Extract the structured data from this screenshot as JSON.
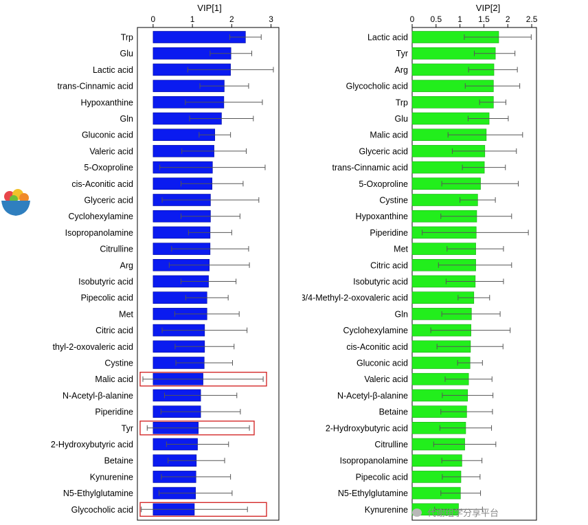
{
  "colors": {
    "left_bar": "#0a1bf0",
    "right_bar": "#22ee1c",
    "highlight": "#d42a2a"
  },
  "logo": {
    "icon": "fruit-bowl-icon"
  },
  "watermark": {
    "text": "代谢组学分享平台",
    "icon": "chat-bubble-icon"
  },
  "chart_data": [
    {
      "type": "bar",
      "orientation": "horizontal",
      "xlabel": "VIP[1]",
      "xlim": [
        -0.4,
        3.2
      ],
      "xticks": [
        0,
        1,
        2,
        3
      ],
      "categories": [
        "Trp",
        "Glu",
        "Lactic acid",
        "trans-Cinnamic acid",
        "Hypoxanthine",
        "Gln",
        "Gluconic acid",
        "Valeric acid",
        "5-Oxoproline",
        "cis-Aconitic acid",
        "Glyceric acid",
        "Cyclohexylamine",
        "Isopropanolamine",
        "Citrulline",
        "Arg",
        "Isobutyric acid",
        "Pipecolic acid",
        "Met",
        "Citric acid",
        "thyl-2-oxovaleric acid",
        "Cystine",
        "Malic acid",
        "N-Acetyl-β-alanine",
        "Piperidine",
        "Tyr",
        "2-Hydroxybutyric acid",
        "Betaine",
        "Kynurenine",
        "N5-Ethylglutamine",
        "Glycocholic acid"
      ],
      "values": [
        2.35,
        1.98,
        1.97,
        1.81,
        1.8,
        1.74,
        1.57,
        1.55,
        1.51,
        1.5,
        1.46,
        1.46,
        1.45,
        1.45,
        1.43,
        1.41,
        1.37,
        1.37,
        1.31,
        1.31,
        1.3,
        1.27,
        1.21,
        1.21,
        1.15,
        1.13,
        1.1,
        1.09,
        1.08,
        1.05
      ],
      "err_low": [
        1.95,
        1.45,
        0.88,
        1.19,
        0.82,
        0.93,
        1.17,
        0.73,
        0.17,
        0.71,
        0.23,
        0.71,
        0.9,
        0.47,
        0.41,
        0.71,
        0.83,
        0.55,
        0.23,
        0.56,
        0.58,
        -0.26,
        0.29,
        0.2,
        -0.15,
        0.34,
        0.38,
        0.21,
        0.15,
        -0.3
      ],
      "err_high": [
        2.75,
        2.51,
        3.06,
        2.43,
        2.78,
        2.55,
        1.97,
        2.37,
        2.85,
        2.29,
        2.69,
        2.21,
        2.0,
        2.43,
        2.45,
        2.11,
        1.91,
        2.19,
        2.39,
        2.06,
        2.02,
        2.8,
        2.13,
        2.22,
        2.45,
        1.92,
        1.82,
        1.97,
        2.01,
        2.4
      ],
      "highlighted": [
        "Malic acid",
        "Tyr",
        "Glycocholic acid"
      ]
    },
    {
      "type": "bar",
      "orientation": "horizontal",
      "xlabel": "VIP[2]",
      "xlim": [
        0,
        2.6
      ],
      "xticks": [
        0,
        0.5,
        1,
        1.5,
        2,
        2.5
      ],
      "categories": [
        "Lactic acid",
        "Tyr",
        "Arg",
        "Glycocholic acid",
        "Trp",
        "Glu",
        "Malic acid",
        "Glyceric acid",
        "trans-Cinnamic acid",
        "5-Oxoproline",
        "Cystine",
        "Hypoxanthine",
        "Piperidine",
        "Met",
        "Citric acid",
        "Isobutyric acid",
        "3/4-Methyl-2-oxovaleric acid",
        "Gln",
        "Cyclohexylamine",
        "cis-Aconitic acid",
        "Gluconic acid",
        "Valeric acid",
        "N-Acetyl-β-alanine",
        "Betaine",
        "2-Hydroxybutyric acid",
        "Citrulline",
        "Isopropanolamine",
        "Pipecolic acid",
        "N5-Ethylglutamine",
        "Kynurenine"
      ],
      "values": [
        1.81,
        1.74,
        1.71,
        1.7,
        1.7,
        1.61,
        1.55,
        1.52,
        1.51,
        1.43,
        1.37,
        1.35,
        1.34,
        1.33,
        1.33,
        1.32,
        1.29,
        1.24,
        1.23,
        1.22,
        1.21,
        1.18,
        1.16,
        1.14,
        1.12,
        1.1,
        1.04,
        1.02,
        1.01,
        0.97
      ],
      "err_low": [
        1.09,
        1.3,
        1.18,
        1.11,
        1.41,
        1.17,
        0.75,
        0.84,
        1.05,
        0.62,
        1.0,
        0.6,
        0.21,
        0.73,
        0.55,
        0.71,
        0.96,
        0.62,
        0.39,
        0.52,
        0.95,
        0.69,
        0.63,
        0.6,
        0.58,
        0.45,
        0.62,
        0.63,
        0.6,
        0.47
      ],
      "err_high": [
        2.49,
        2.15,
        2.2,
        2.25,
        1.96,
        2.01,
        2.31,
        2.18,
        1.95,
        2.22,
        1.74,
        2.08,
        2.43,
        1.91,
        2.08,
        1.91,
        1.62,
        1.84,
        2.05,
        1.9,
        1.47,
        1.67,
        1.69,
        1.68,
        1.66,
        1.75,
        1.46,
        1.42,
        1.43,
        1.47
      ],
      "highlighted": []
    }
  ]
}
